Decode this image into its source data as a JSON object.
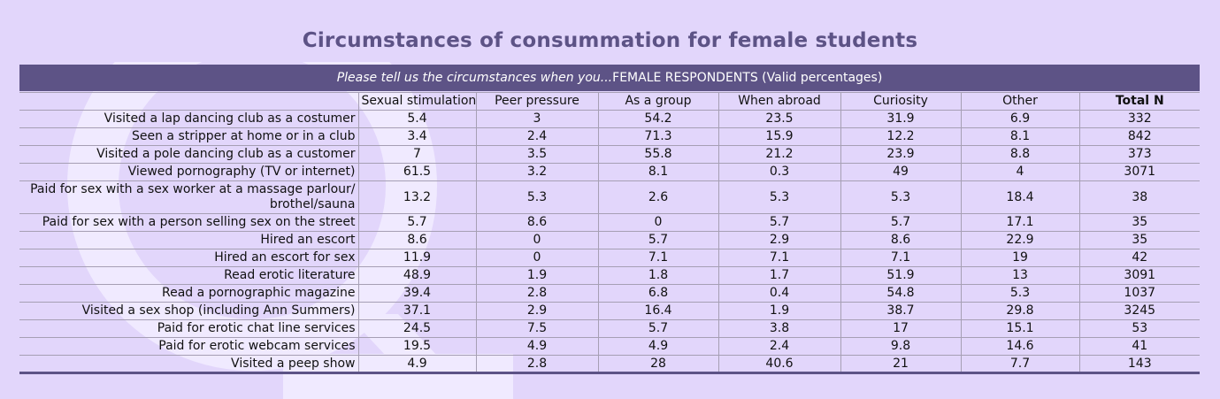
{
  "title": "Circumstances of consummation for female students",
  "subtitle": {
    "italic": "Please tell us the circumstances when you...",
    "rest": " FEMALE RESPONDENTS (Valid percentages)"
  },
  "colors": {
    "header_bg": "#5d5386",
    "page_bg": "#e2d6fb",
    "title_color": "#5d5386",
    "watermark": "#f0eaff"
  },
  "watermark_icon": "female-symbol-icon",
  "columns": [
    "",
    "Sexual stimulation",
    "Peer pressure",
    "As a group",
    "When abroad",
    "Curiosity",
    "Other",
    "Total N"
  ],
  "rows": [
    {
      "label": "Visited a lap dancing club as a costumer",
      "values": [
        "5.4",
        "3",
        "54.2",
        "23.5",
        "31.9",
        "6.9",
        "332"
      ]
    },
    {
      "label": "Seen a stripper at home or in a club",
      "values": [
        "3.4",
        "2.4",
        "71.3",
        "15.9",
        "12.2",
        "8.1",
        "842"
      ]
    },
    {
      "label": "Visited a pole dancing club as a customer",
      "values": [
        "7",
        "3.5",
        "55.8",
        "21.2",
        "23.9",
        "8.8",
        "373"
      ]
    },
    {
      "label": "Viewed pornography (TV or internet)",
      "values": [
        "61.5",
        "3.2",
        "8.1",
        "0.3",
        "49",
        "4",
        "3071"
      ]
    },
    {
      "label": "Paid for sex with a sex worker at a massage parlour/ brothel/sauna",
      "values": [
        "13.2",
        "5.3",
        "2.6",
        "5.3",
        "5.3",
        "18.4",
        "38"
      ]
    },
    {
      "label": "Paid for sex with a person selling sex on the street",
      "values": [
        "5.7",
        "8.6",
        "0",
        "5.7",
        "5.7",
        "17.1",
        "35"
      ]
    },
    {
      "label": "Hired an escort",
      "values": [
        "8.6",
        "0",
        "5.7",
        "2.9",
        "8.6",
        "22.9",
        "35"
      ]
    },
    {
      "label": "Hired an escort for sex",
      "values": [
        "11.9",
        "0",
        "7.1",
        "7.1",
        "7.1",
        "19",
        "42"
      ]
    },
    {
      "label": "Read erotic literature",
      "values": [
        "48.9",
        "1.9",
        "1.8",
        "1.7",
        "51.9",
        "13",
        "3091"
      ]
    },
    {
      "label": "Read a pornographic magazine",
      "values": [
        "39.4",
        "2.8",
        "6.8",
        "0.4",
        "54.8",
        "5.3",
        "1037"
      ]
    },
    {
      "label": "Visited a sex shop (including Ann Summers)",
      "values": [
        "37.1",
        "2.9",
        "16.4",
        "1.9",
        "38.7",
        "29.8",
        "3245"
      ]
    },
    {
      "label": "Paid for erotic chat line services",
      "values": [
        "24.5",
        "7.5",
        "5.7",
        "3.8",
        "17",
        "15.1",
        "53"
      ]
    },
    {
      "label": "Paid for erotic webcam services",
      "values": [
        "19.5",
        "4.9",
        "4.9",
        "2.4",
        "9.8",
        "14.6",
        "41"
      ]
    },
    {
      "label": "Visited a peep show",
      "values": [
        "4.9",
        "2.8",
        "28",
        "40.6",
        "21",
        "7.7",
        "143"
      ]
    }
  ]
}
